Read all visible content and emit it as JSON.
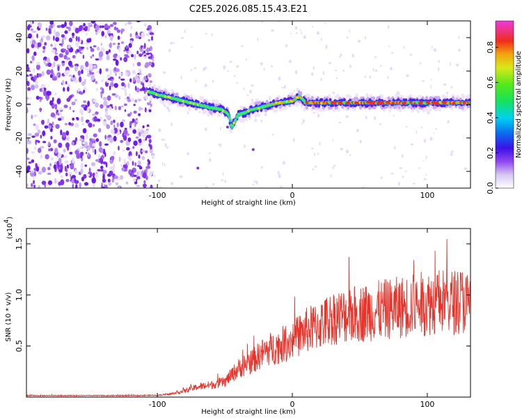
{
  "chart_data": [
    {
      "type": "heatmap",
      "title": "C2E5.2026.085.15.43.E21",
      "xlabel": "Height of straight line (km)",
      "ylabel": "Frequency (Hz)",
      "xlim": [
        -197,
        132
      ],
      "ylim": [
        -50,
        50
      ],
      "xticks": [
        -100,
        0,
        100
      ],
      "yticks": [
        -40,
        -20,
        0,
        20,
        40
      ],
      "colorbar": {
        "label": "Normalized spectral amplitude",
        "range": [
          0,
          0.95
        ],
        "ticks": [
          0.0,
          0.2,
          0.4,
          0.6,
          0.8
        ]
      },
      "noise_region_x": [
        -197,
        -103
      ],
      "signal_track": {
        "x": [
          -107,
          -100,
          -90,
          -80,
          -70,
          -60,
          -52,
          -47,
          -45,
          -40,
          -35,
          -30,
          -20,
          -10,
          0,
          5,
          10,
          20,
          40,
          60,
          80,
          100,
          120,
          132
        ],
        "y": [
          8,
          6,
          4,
          2,
          0,
          -2,
          -3,
          -6,
          -14,
          -6,
          -5,
          -3,
          -1,
          1,
          2,
          5,
          1,
          1,
          1,
          1,
          1,
          1,
          1,
          1
        ]
      }
    },
    {
      "type": "line",
      "title": "",
      "xlabel": "Height of straight line (km)",
      "ylabel": "SNR (10 * v/v)",
      "scale_label": "(x10",
      "scale_exp": "4",
      "scale_close": ")",
      "xlim": [
        -197,
        132
      ],
      "ylim": [
        0,
        16500
      ],
      "xticks": [
        -100,
        0,
        100
      ],
      "yticks": [
        5000,
        10000,
        15000
      ],
      "ytick_labels": [
        "0.5",
        "1.0",
        "1.5"
      ],
      "series": [
        {
          "name": "SNR",
          "color": "#e8332a",
          "x": [
            -197,
            -160,
            -120,
            -100,
            -90,
            -80,
            -70,
            -60,
            -50,
            -40,
            -30,
            -20,
            -10,
            0,
            10,
            20,
            30,
            40,
            50,
            60,
            70,
            80,
            90,
            100,
            110,
            120,
            125,
            132
          ],
          "y": [
            150,
            150,
            150,
            180,
            300,
            600,
            1000,
            1200,
            1500,
            2800,
            3500,
            4500,
            5000,
            5600,
            6500,
            7000,
            7800,
            8000,
            8200,
            8400,
            8600,
            8800,
            9000,
            9200,
            9400,
            9300,
            9500,
            9000
          ]
        }
      ]
    }
  ]
}
